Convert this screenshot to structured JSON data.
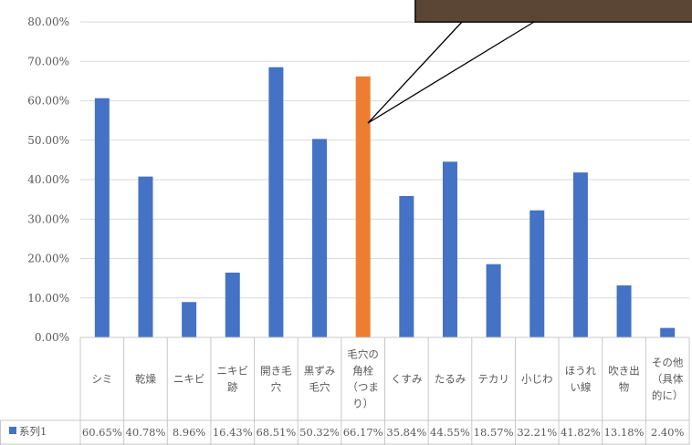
{
  "chart_data": {
    "type": "bar",
    "categories": [
      [
        "シミ"
      ],
      [
        "乾燥"
      ],
      [
        "ニキビ"
      ],
      [
        "ニキビ",
        "跡"
      ],
      [
        "開き毛",
        "穴"
      ],
      [
        "黒ずみ",
        "毛穴"
      ],
      [
        "毛穴の",
        "角栓",
        "（つま",
        "り）"
      ],
      [
        "くすみ"
      ],
      [
        "たるみ"
      ],
      [
        "テカリ"
      ],
      [
        "小じわ"
      ],
      [
        "ほうれ",
        "い線"
      ],
      [
        "吹き出",
        "物"
      ],
      [
        "その他",
        "（具体",
        "的に）"
      ]
    ],
    "series": [
      {
        "name": "系列1",
        "values": [
          60.65,
          40.78,
          8.96,
          16.43,
          68.51,
          50.32,
          66.17,
          35.84,
          44.55,
          18.57,
          32.21,
          41.82,
          13.18,
          2.4
        ],
        "labels": [
          "60.65%",
          "40.78%",
          "8.96%",
          "16.43%",
          "68.51%",
          "50.32%",
          "66.17%",
          "35.84%",
          "44.55%",
          "18.57%",
          "32.21%",
          "41.82%",
          "13.18%",
          "2.40%"
        ]
      }
    ],
    "highlight_index": 6,
    "y_ticks": [
      "0.00%",
      "10.00%",
      "20.00%",
      "30.00%",
      "40.00%",
      "50.00%",
      "60.00%",
      "70.00%",
      "80.00%"
    ],
    "ylim": [
      0,
      80
    ],
    "grid": true,
    "legend": "data-table",
    "colors": {
      "bar": "#4472c4",
      "highlight": "#ed7d31",
      "legend_key": "#4472c4"
    }
  }
}
